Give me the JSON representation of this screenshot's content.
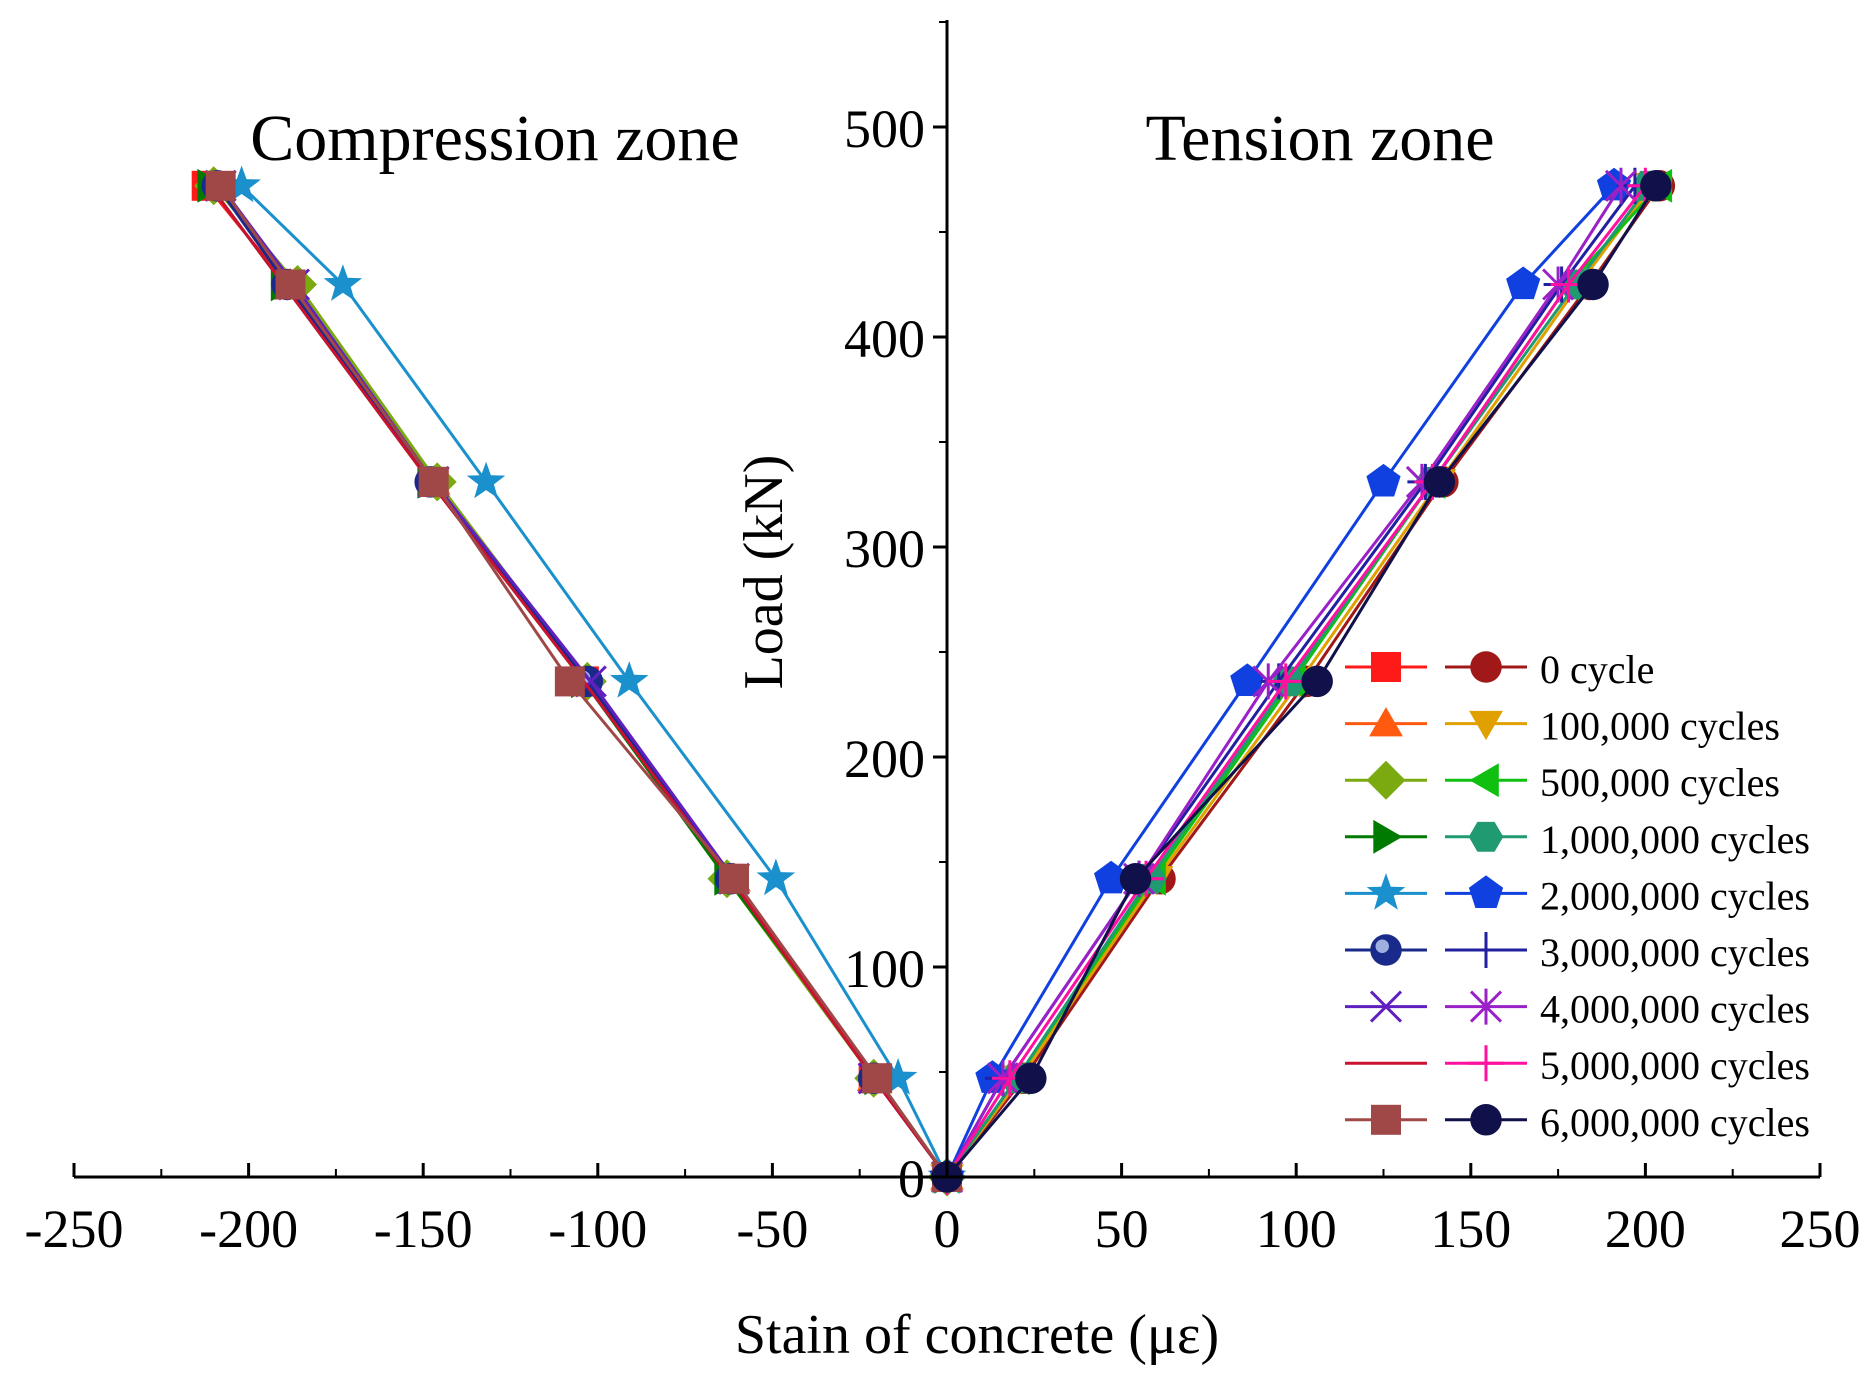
{
  "chart_data": {
    "type": "line",
    "xlabel": "Stain of concrete (με)",
    "ylabel": "Load (kN)",
    "xlim": [
      -250,
      250
    ],
    "ylim": [
      0,
      550
    ],
    "xticks": [
      -250,
      -200,
      -150,
      -100,
      -50,
      0,
      50,
      100,
      150,
      200,
      250
    ],
    "xtick_labels": [
      "-250",
      "-200",
      "-150",
      "-100",
      "-50",
      "0",
      "50",
      "100",
      "150",
      "200",
      "250"
    ],
    "yticks": [
      0,
      100,
      200,
      300,
      400,
      500
    ],
    "ytick_labels": [
      "0",
      "100",
      "200",
      "300",
      "400",
      "500"
    ],
    "annotations": {
      "compression": "Compression zone",
      "tension": "Tension zone"
    },
    "loads": [
      0,
      47,
      142,
      236,
      331,
      425,
      472
    ],
    "legend_labels": [
      "0 cycle",
      "100,000 cycles",
      "500,000 cycles",
      "1,000,000 cycles",
      "2,000,000 cycles",
      "3,000,000 cycles",
      "4,000,000 cycles",
      "5,000,000 cycles",
      "6,000,000 cycles"
    ],
    "series": [
      {
        "name": "0 cycle (compression)",
        "zone": "compression",
        "legend_row": 0,
        "legend_col": 0,
        "color": "#ff1a1a",
        "marker": "square",
        "x": [
          0,
          -21,
          -62,
          -104,
          -147,
          -189,
          -212
        ]
      },
      {
        "name": "0 cycle (tension)",
        "zone": "tension",
        "legend_row": 0,
        "legend_col": 1,
        "color": "#a01818",
        "marker": "circle",
        "x": [
          0,
          22,
          61,
          103,
          142,
          184,
          204
        ]
      },
      {
        "name": "100,000 cycles (compression)",
        "zone": "compression",
        "legend_row": 1,
        "legend_col": 0,
        "color": "#ff5a10",
        "marker": "triangle-up",
        "x": [
          0,
          -21,
          -61,
          -103,
          -147,
          -188,
          -209
        ]
      },
      {
        "name": "100,000 cycles (tension)",
        "zone": "tension",
        "legend_row": 1,
        "legend_col": 1,
        "color": "#e0a000",
        "marker": "triangle-down",
        "x": [
          0,
          21,
          60,
          101,
          141,
          181,
          202
        ]
      },
      {
        "name": "500,000 cycles (compression)",
        "zone": "compression",
        "legend_row": 2,
        "legend_col": 0,
        "color": "#7aaa10",
        "marker": "diamond",
        "x": [
          0,
          -21,
          -63,
          -103,
          -146,
          -186,
          -210
        ]
      },
      {
        "name": "500,000 cycles (tension)",
        "zone": "tension",
        "legend_row": 2,
        "legend_col": 1,
        "color": "#10c010",
        "marker": "triangle-left",
        "x": [
          0,
          20,
          59,
          99,
          139,
          178,
          204
        ]
      },
      {
        "name": "1,000,000 cycles (compression)",
        "zone": "compression",
        "legend_row": 3,
        "legend_col": 0,
        "color": "#007a00",
        "marker": "triangle-right",
        "x": [
          0,
          -20,
          -63,
          -104,
          -148,
          -190,
          -211
        ]
      },
      {
        "name": "1,000,000 cycles (tension)",
        "zone": "tension",
        "legend_row": 3,
        "legend_col": 1,
        "color": "#209a70",
        "marker": "hexagon",
        "x": [
          0,
          20,
          58,
          98,
          139,
          180,
          201
        ]
      },
      {
        "name": "2,000,000 cycles (compression)",
        "zone": "compression",
        "legend_row": 4,
        "legend_col": 0,
        "color": "#1a90cc",
        "marker": "star",
        "x": [
          0,
          -14,
          -49,
          -91,
          -132,
          -173,
          -202
        ]
      },
      {
        "name": "2,000,000 cycles (tension)",
        "zone": "tension",
        "legend_row": 4,
        "legend_col": 1,
        "color": "#1040e0",
        "marker": "pentagon",
        "x": [
          0,
          13,
          47,
          86,
          125,
          165,
          191
        ]
      },
      {
        "name": "3,000,000 cycles (compression)",
        "zone": "compression",
        "legend_row": 5,
        "legend_col": 0,
        "color": "#1a2a8a",
        "marker": "sphere",
        "x": [
          0,
          -21,
          -62,
          -103,
          -148,
          -189,
          -209
        ]
      },
      {
        "name": "3,000,000 cycles (tension)",
        "zone": "tension",
        "legend_row": 5,
        "legend_col": 1,
        "color": "#2020a0",
        "marker": "plus",
        "x": [
          0,
          16,
          55,
          95,
          137,
          176,
          197
        ]
      },
      {
        "name": "4,000,000 cycles (compression)",
        "zone": "compression",
        "legend_row": 6,
        "legend_col": 0,
        "color": "#6020c0",
        "marker": "x",
        "x": [
          0,
          -21,
          -61,
          -102,
          -147,
          -187,
          -208
        ]
      },
      {
        "name": "4,000,000 cycles (tension)",
        "zone": "tension",
        "legend_row": 6,
        "legend_col": 1,
        "color": "#9a20c8",
        "marker": "asterisk",
        "x": [
          0,
          16,
          55,
          92,
          136,
          175,
          193
        ]
      },
      {
        "name": "5,000,000 cycles (compression)",
        "zone": "compression",
        "legend_row": 7,
        "legend_col": 0,
        "color": "#cc1030",
        "marker": "none",
        "x": [
          0,
          -21,
          -62,
          -104,
          -148,
          -190,
          -211
        ]
      },
      {
        "name": "5,000,000 cycles (tension)",
        "zone": "tension",
        "legend_row": 7,
        "legend_col": 1,
        "color": "#ff10a0",
        "marker": "plus",
        "x": [
          0,
          18,
          57,
          97,
          139,
          178,
          200
        ]
      },
      {
        "name": "6,000,000 cycles (compression)",
        "zone": "compression",
        "legend_row": 8,
        "legend_col": 0,
        "color": "#a04848",
        "marker": "square",
        "x": [
          0,
          -20,
          -61,
          -108,
          -147,
          -188,
          -208
        ]
      },
      {
        "name": "6,000,000 cycles (tension)",
        "zone": "tension",
        "legend_row": 8,
        "legend_col": 1,
        "color": "#10104a",
        "marker": "circle",
        "x": [
          0,
          24,
          54,
          106,
          141,
          185,
          203
        ]
      }
    ]
  }
}
